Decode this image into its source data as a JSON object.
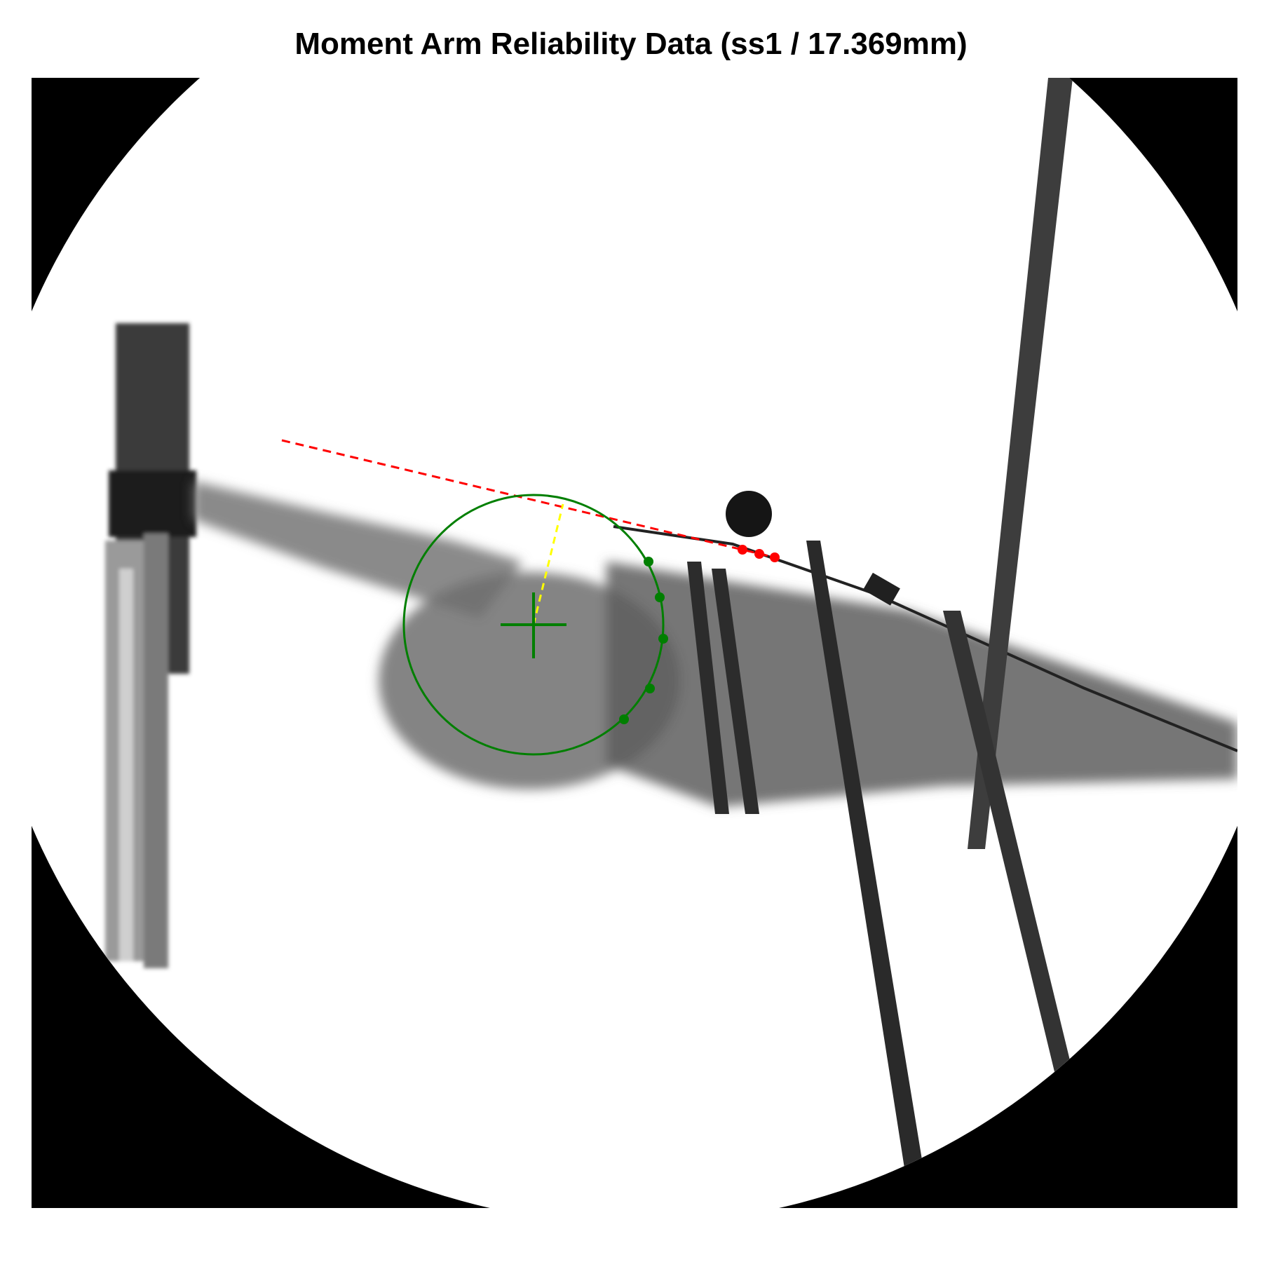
{
  "figure": {
    "title": "Moment Arm Reliability Data (ss1 / 17.369mm)"
  },
  "annotations": {
    "center_marker": "crosshair",
    "circle_points": 5,
    "line_points": 3,
    "colors": {
      "circle": "#007f00",
      "tendon_line": "#ff0000",
      "moment_arm": "#ffff00",
      "background": "#000000",
      "field": "#ffffff"
    }
  }
}
